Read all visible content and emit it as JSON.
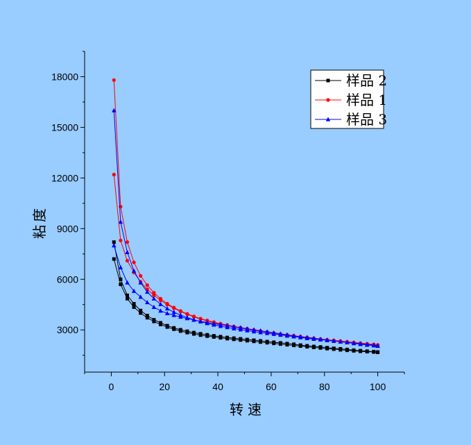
{
  "chart_data": {
    "type": "line",
    "title": "",
    "xlabel": "转速",
    "ylabel": "粘度",
    "xlim": [
      -10,
      110
    ],
    "ylim": [
      500,
      19500
    ],
    "x_ticks": [
      "0",
      "20",
      "40",
      "60",
      "80",
      "100"
    ],
    "y_ticks": [
      "3000",
      "6000",
      "9000",
      "12000",
      "15000",
      "18000"
    ],
    "grid": false,
    "legend": "top-right",
    "legend_entries": [
      "样品 2",
      "样品 1",
      "样品 3"
    ],
    "series": [
      {
        "name": "样品 2",
        "color": "#000000",
        "marker": "square",
        "x": [
          1,
          3.5,
          6,
          8.5,
          11,
          13.5,
          16,
          18.5,
          21,
          23.5,
          26,
          28.5,
          31,
          33.5,
          36,
          38.5,
          41,
          43.5,
          46,
          48.5,
          51,
          53.5,
          56,
          58.5,
          61,
          63.5,
          66,
          68.5,
          71,
          73.5,
          76,
          78.5,
          81,
          83.5,
          86,
          88.5,
          91,
          93.5,
          96,
          98.5,
          100
        ],
        "y": [
          8200,
          6000,
          5050,
          4550,
          4150,
          3850,
          3600,
          3420,
          3250,
          3120,
          3010,
          2920,
          2840,
          2770,
          2710,
          2650,
          2600,
          2550,
          2510,
          2470,
          2430,
          2390,
          2350,
          2310,
          2270,
          2230,
          2190,
          2150,
          2100,
          2060,
          2020,
          1990,
          1950,
          1910,
          1880,
          1840,
          1800,
          1770,
          1740,
          1710,
          1690
        ]
      },
      {
        "name": "样品 2",
        "color": "#000000",
        "marker": "square",
        "x": [
          1,
          3.5,
          6,
          8.5,
          11,
          13.5,
          16,
          18.5,
          21,
          23.5,
          26,
          28.5,
          31,
          33.5,
          36,
          38.5,
          41,
          43.5,
          46,
          48.5,
          51,
          53.5,
          56,
          58.5,
          61,
          63.5,
          66,
          68.5,
          71,
          73.5,
          76,
          78.5,
          81,
          83.5,
          86,
          88.5,
          91,
          93.5,
          96,
          98.5,
          100
        ],
        "y": [
          7200,
          5700,
          4850,
          4350,
          4000,
          3720,
          3500,
          3320,
          3170,
          3040,
          2930,
          2840,
          2760,
          2690,
          2630,
          2580,
          2530,
          2480,
          2440,
          2400,
          2360,
          2320,
          2280,
          2240,
          2200,
          2160,
          2120,
          2080,
          2040,
          2000,
          1960,
          1930,
          1890,
          1860,
          1820,
          1790,
          1760,
          1730,
          1710,
          1690,
          1670
        ]
      },
      {
        "name": "样品 1",
        "color": "#ff0000",
        "marker": "circle",
        "x": [
          1,
          3.5,
          6,
          8.5,
          11,
          13.5,
          16,
          18.5,
          21,
          23.5,
          26,
          28.5,
          31,
          33.5,
          36,
          38.5,
          41,
          43.5,
          46,
          48.5,
          51,
          53.5,
          56,
          58.5,
          61,
          63.5,
          66,
          68.5,
          71,
          73.5,
          76,
          78.5,
          81,
          83.5,
          86,
          88.5,
          91,
          93.5,
          96,
          98.5,
          100
        ],
        "y": [
          17800,
          10300,
          8200,
          7000,
          6200,
          5650,
          5200,
          4850,
          4550,
          4320,
          4120,
          3950,
          3800,
          3670,
          3560,
          3460,
          3370,
          3290,
          3210,
          3140,
          3070,
          3000,
          2940,
          2880,
          2820,
          2760,
          2710,
          2660,
          2610,
          2560,
          2510,
          2460,
          2420,
          2380,
          2340,
          2300,
          2260,
          2220,
          2180,
          2140,
          2110
        ]
      },
      {
        "name": "样品 1",
        "color": "#ff0000",
        "marker": "circle",
        "x": [
          1,
          3.5,
          6,
          8.5,
          11,
          13.5,
          16,
          18.5,
          21,
          23.5,
          26,
          28.5,
          31,
          33.5,
          36,
          38.5,
          41,
          43.5,
          46,
          48.5,
          51,
          53.5,
          56,
          58.5,
          61,
          63.5,
          66,
          68.5,
          71,
          73.5,
          76,
          78.5,
          81,
          83.5,
          86,
          88.5,
          91,
          93.5,
          96,
          98.5,
          100
        ],
        "y": [
          12200,
          8300,
          7100,
          6400,
          5850,
          5400,
          5050,
          4750,
          4500,
          4280,
          4090,
          3920,
          3770,
          3640,
          3530,
          3430,
          3340,
          3260,
          3180,
          3110,
          3040,
          2980,
          2920,
          2860,
          2800,
          2740,
          2690,
          2640,
          2590,
          2540,
          2490,
          2450,
          2410,
          2370,
          2330,
          2290,
          2250,
          2210,
          2170,
          2130,
          2100
        ]
      },
      {
        "name": "样品 3",
        "color": "#0000ff",
        "marker": "triangle",
        "x": [
          1,
          3.5,
          6,
          8.5,
          11,
          13.5,
          16,
          18.5,
          21,
          23.5,
          26,
          28.5,
          31,
          33.5,
          36,
          38.5,
          41,
          43.5,
          46,
          48.5,
          51,
          53.5,
          56,
          58.5,
          61,
          63.5,
          66,
          68.5,
          71,
          73.5,
          76,
          78.5,
          81,
          83.5,
          86,
          88.5,
          91,
          93.5,
          96,
          98.5,
          100
        ],
        "y": [
          16000,
          9400,
          7600,
          6500,
          5800,
          5250,
          4850,
          4520,
          4260,
          4050,
          3880,
          3730,
          3600,
          3490,
          3390,
          3300,
          3220,
          3150,
          3080,
          3020,
          2960,
          2900,
          2850,
          2800,
          2750,
          2700,
          2650,
          2600,
          2550,
          2500,
          2460,
          2420,
          2380,
          2340,
          2300,
          2260,
          2220,
          2180,
          2140,
          2100,
          2060
        ]
      },
      {
        "name": "样品 3",
        "color": "#0000ff",
        "marker": "triangle",
        "x": [
          1,
          3.5,
          6,
          8.5,
          11,
          13.5,
          16,
          18.5,
          21,
          23.5,
          26,
          28.5,
          31,
          33.5,
          36,
          38.5,
          41,
          43.5,
          46,
          48.5,
          51,
          53.5,
          56,
          58.5,
          61,
          63.5,
          66,
          68.5,
          71,
          73.5,
          76,
          78.5,
          81,
          83.5,
          86,
          88.5,
          91,
          93.5,
          96,
          98.5,
          100
        ],
        "y": [
          8000,
          6700,
          5800,
          5300,
          4950,
          4630,
          4350,
          4130,
          3980,
          3870,
          3770,
          3680,
          3590,
          3510,
          3440,
          3370,
          3310,
          3250,
          3190,
          3130,
          3070,
          3010,
          2950,
          2890,
          2830,
          2770,
          2710,
          2650,
          2600,
          2550,
          2500,
          2450,
          2400,
          2350,
          2300,
          2250,
          2200,
          2150,
          2110,
          2070,
          2040
        ]
      }
    ]
  }
}
